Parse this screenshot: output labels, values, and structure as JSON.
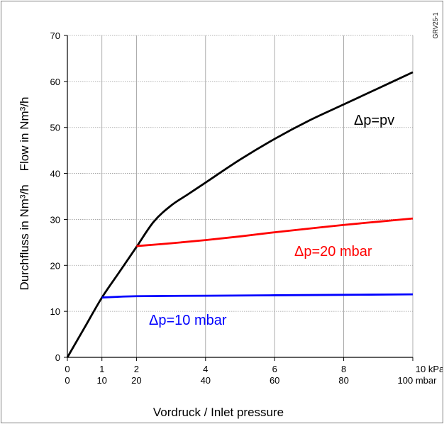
{
  "figure_code": "GRV25-1",
  "chart_data": {
    "type": "line",
    "xlabel": "Vordruck / Inlet pressure",
    "ylabel": "Durchfluss in Nm³/h    Flow in Nm³/h",
    "xlim": [
      0,
      10
    ],
    "ylim": [
      0,
      70
    ],
    "grid": true,
    "x_ticks": [
      {
        "value": 0,
        "kpa": "0",
        "mbar": "0"
      },
      {
        "value": 1,
        "kpa": "1",
        "mbar": "10"
      },
      {
        "value": 2,
        "kpa": "2",
        "mbar": "20"
      },
      {
        "value": 4,
        "kpa": "4",
        "mbar": "40"
      },
      {
        "value": 6,
        "kpa": "6",
        "mbar": "60"
      },
      {
        "value": 8,
        "kpa": "8",
        "mbar": "80"
      },
      {
        "value": 10,
        "kpa": "10 kPa",
        "mbar": "100 mbar"
      }
    ],
    "y_ticks": [
      0,
      10,
      20,
      30,
      40,
      50,
      60,
      70
    ],
    "series": [
      {
        "name": "Δp=pv",
        "color": "#000000",
        "x": [
          0,
          0.5,
          1,
          1.5,
          2,
          2.5,
          3,
          3.5,
          4,
          5,
          6,
          7,
          8,
          9,
          10
        ],
        "y": [
          0,
          6.5,
          13,
          18.5,
          24,
          29.5,
          33,
          35.5,
          38,
          43,
          47.5,
          51.5,
          55,
          58.5,
          62
        ]
      },
      {
        "name": "Δp=20 mbar",
        "color": "#ff0000",
        "x": [
          2,
          3,
          4,
          5,
          6,
          7,
          8,
          9,
          10
        ],
        "y": [
          24.2,
          24.8,
          25.5,
          26.3,
          27.2,
          28,
          28.8,
          29.5,
          30.2
        ]
      },
      {
        "name": "Δp=10 mbar",
        "color": "#0000ff",
        "x": [
          1,
          2,
          4,
          6,
          8,
          10
        ],
        "y": [
          13,
          13.3,
          13.4,
          13.5,
          13.6,
          13.7
        ]
      }
    ]
  }
}
